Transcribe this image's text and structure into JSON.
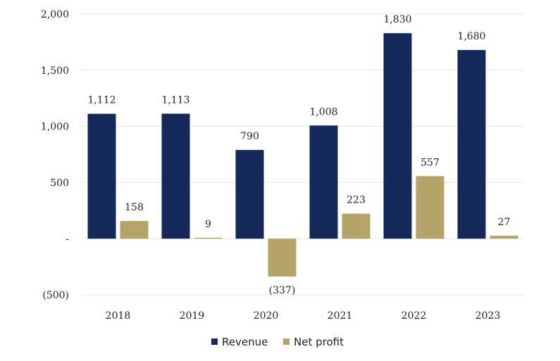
{
  "chart_data": {
    "type": "bar",
    "categories": [
      "2018",
      "2019",
      "2020",
      "2021",
      "2022",
      "2023"
    ],
    "series": [
      {
        "name": "Revenue",
        "values": [
          1112,
          1113,
          790,
          1008,
          1830,
          1680
        ],
        "color": "#14295a"
      },
      {
        "name": "Net profit",
        "values": [
          158,
          9,
          -337,
          223,
          557,
          27
        ],
        "color": "#b4a468"
      }
    ],
    "data_labels": {
      "Revenue": [
        "1,112",
        "1,113",
        "790",
        "1,008",
        "1,830",
        "1,680"
      ],
      "Net profit": [
        "158",
        "9",
        "(337)",
        "223",
        "557",
        "27"
      ]
    },
    "y_ticks": [
      2000,
      1500,
      1000,
      500,
      0,
      -500
    ],
    "y_tick_labels": [
      "2,000",
      "1,500",
      "1,000",
      "500",
      "-",
      "(500)"
    ],
    "ylim": [
      -500,
      2000
    ],
    "grid": true,
    "legend_position": "bottom-center",
    "title": "",
    "xlabel": "",
    "ylabel": ""
  }
}
